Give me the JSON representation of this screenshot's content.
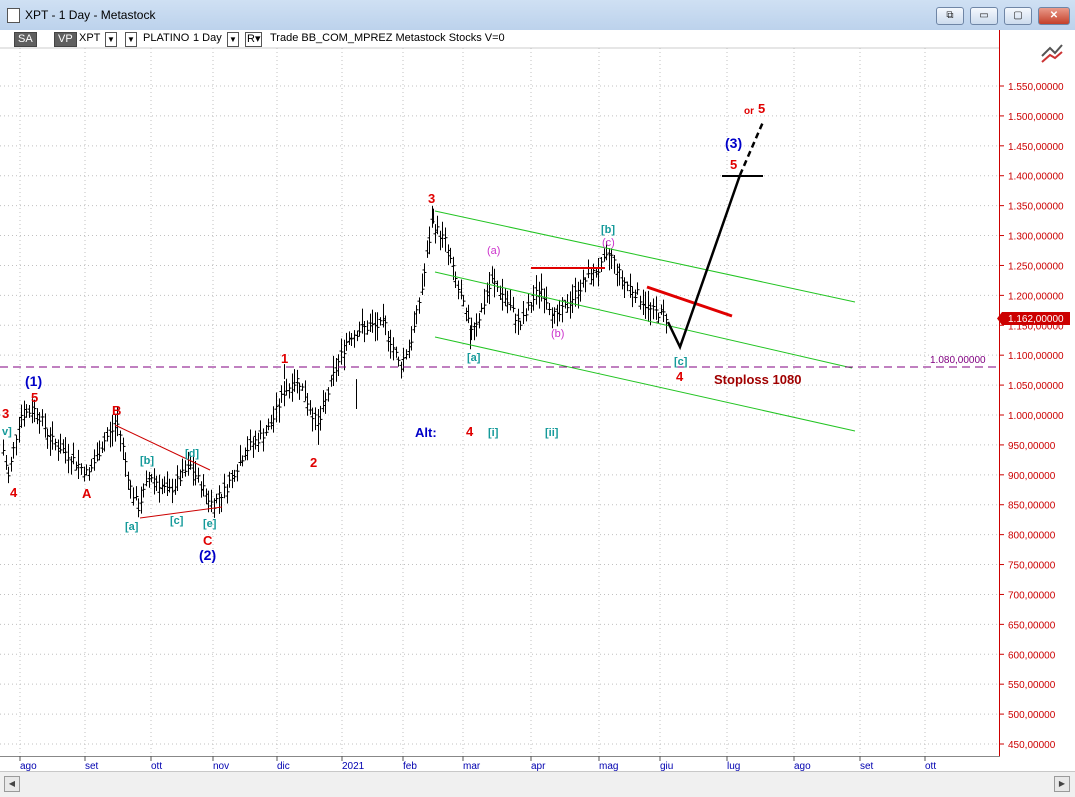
{
  "window": {
    "title": "XPT - 1 Day - Metastock",
    "buttons": [
      "⧉",
      "▭",
      "▢",
      "✕"
    ]
  },
  "toolbar": {
    "sa": "SA",
    "vp": "VP",
    "symbol": "XPT",
    "name": "PLATINO",
    "period": "1 Day",
    "rest": "Trade  BB_COM_MPREZ  Metastock  Stocks  V=0",
    "dd": "▼",
    "r": "R▾"
  },
  "colors": {
    "price_axis": "#cc0000",
    "wave_red": "#e00000",
    "wave_blue": "#0000c8",
    "wave_teal": "#159a9a",
    "wave_magenta": "#cc33cc",
    "channel": "#22c422",
    "stoploss": "#800080"
  },
  "chart_data": {
    "type": "ohlc",
    "symbol": "XPT",
    "ylim": [
      430,
      1590
    ],
    "y_ticks": [
      "1.550,00000",
      "1.500,00000",
      "1.450,00000",
      "1.400,00000",
      "1.350,00000",
      "1.300,00000",
      "1.250,00000",
      "1.200,00000",
      "1.150,00000",
      "1.100,00000",
      "1.050,00000",
      "1.000,00000",
      "950,00000",
      "900,00000",
      "850,00000",
      "800,00000",
      "750,00000",
      "700,00000",
      "650,00000",
      "600,00000",
      "550,00000",
      "500,00000",
      "450,00000"
    ],
    "x_ticks": [
      "ago",
      "set",
      "ott",
      "nov",
      "dic",
      "2021",
      "feb",
      "mar",
      "apr",
      "mag",
      "giu",
      "lug",
      "ago",
      "set",
      "ott"
    ],
    "last_price": "1.162,00000",
    "stoploss_value": "1.080,00000",
    "stoploss_label": "Stoploss 1080",
    "alt_label": "Alt:",
    "wave_labels": {
      "red": [
        "3",
        "5",
        "4",
        "B",
        "A",
        "C",
        "1",
        "2",
        "3",
        "4",
        "5",
        "4",
        "5"
      ],
      "blue": [
        "(1)",
        "(2)",
        "(3)"
      ],
      "teal": [
        "v]",
        "[a]",
        "[b]",
        "[c]",
        "[d]",
        "[e]",
        "[a]",
        "[b]",
        "[c]",
        "[i]",
        "[ii]"
      ],
      "magenta": [
        "(a)",
        "(b)",
        "(c)"
      ],
      "or_label": "or"
    }
  }
}
